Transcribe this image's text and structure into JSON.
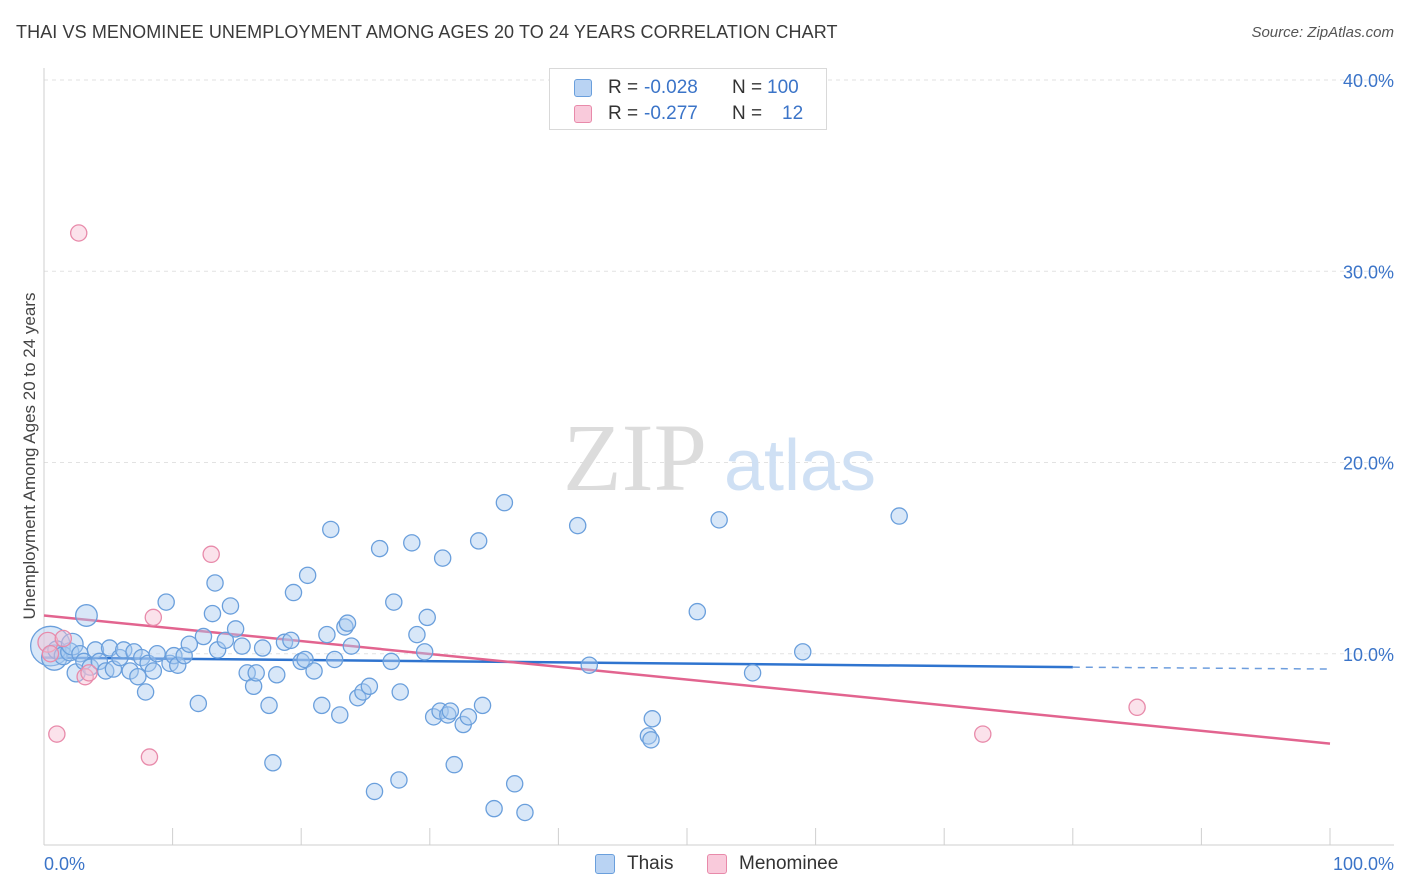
{
  "header": {
    "title": "THAI VS MENOMINEE UNEMPLOYMENT AMONG AGES 20 TO 24 YEARS CORRELATION CHART",
    "source": "Source: ZipAtlas.com"
  },
  "legend": {
    "rows": [
      {
        "r_label": "R =",
        "r_value": "-0.028",
        "n_label": "N =",
        "n_value": "100"
      },
      {
        "r_label": "R =",
        "r_value": "-0.277",
        "n_label": "N =",
        "n_value": "12"
      }
    ]
  },
  "bottom_legend": {
    "thais": "Thais",
    "menominee": "Menominee"
  },
  "watermark": {
    "zip": "ZIP",
    "atlas": "atlas"
  },
  "colors": {
    "thai_fill": "#a9c9f0",
    "thai_stroke": "#6a9fdc",
    "thai_line": "#2f74cf",
    "men_fill": "#f7bfd2",
    "men_stroke": "#e88aaa",
    "men_line": "#e2648f",
    "axis_text": "#3b74c8",
    "grid": "#e2e2e2"
  },
  "chart_data": {
    "type": "scatter",
    "title": "THAI VS MENOMINEE UNEMPLOYMENT AMONG AGES 20 TO 24 YEARS CORRELATION CHART",
    "xlabel": "",
    "ylabel": "Unemployment Among Ages 20 to 24 years",
    "xlim": [
      0,
      100
    ],
    "ylim": [
      0,
      40
    ],
    "x_tick_labels": [
      "0.0%",
      "100.0%"
    ],
    "y_ticks": [
      10,
      20,
      30,
      40
    ],
    "y_tick_labels": [
      "10.0%",
      "20.0%",
      "30.0%",
      "40.0%"
    ],
    "series": [
      {
        "name": "Thais",
        "r": -0.028,
        "n": 100,
        "trend": {
          "x0": 0,
          "y0": 9.8,
          "x1": 80,
          "y1": 9.3,
          "dash_to_x": 100,
          "dash_to_y": 9.2
        },
        "points": [
          [
            0.5,
            10.4,
            22
          ],
          [
            0.8,
            9.8,
            14
          ],
          [
            1.0,
            10.2,
            10
          ],
          [
            1.5,
            9.9,
            10
          ],
          [
            2.0,
            10.1,
            10
          ],
          [
            2.2,
            10.5,
            12
          ],
          [
            2.5,
            9.0,
            10
          ],
          [
            2.8,
            10.0,
            9
          ],
          [
            3.1,
            9.6,
            9
          ],
          [
            3.3,
            12.0,
            12
          ],
          [
            3.6,
            9.3,
            9
          ],
          [
            4.0,
            10.2,
            9
          ],
          [
            4.3,
            9.6,
            9
          ],
          [
            4.8,
            9.1,
            9
          ],
          [
            5.1,
            10.3,
            9
          ],
          [
            5.4,
            9.2,
            9
          ],
          [
            5.9,
            9.8,
            9
          ],
          [
            6.2,
            10.2,
            9
          ],
          [
            6.7,
            9.1,
            9
          ],
          [
            7.0,
            10.1,
            9
          ],
          [
            7.3,
            8.8,
            9
          ],
          [
            7.6,
            9.8,
            9
          ],
          [
            7.9,
            8.0,
            9
          ],
          [
            8.1,
            9.5,
            9
          ],
          [
            8.5,
            9.1,
            9
          ],
          [
            8.8,
            10.0,
            9
          ],
          [
            9.5,
            12.7,
            9
          ],
          [
            9.8,
            9.5,
            9
          ],
          [
            10.1,
            9.9,
            9
          ],
          [
            10.4,
            9.4,
            9
          ],
          [
            10.9,
            9.9,
            9
          ],
          [
            11.3,
            10.5,
            9
          ],
          [
            12.0,
            7.4,
            9
          ],
          [
            12.4,
            10.9,
            9
          ],
          [
            13.1,
            12.1,
            9
          ],
          [
            13.3,
            13.7,
            9
          ],
          [
            13.5,
            10.2,
            9
          ],
          [
            14.1,
            10.7,
            9
          ],
          [
            14.5,
            12.5,
            9
          ],
          [
            14.9,
            11.3,
            9
          ],
          [
            15.4,
            10.4,
            9
          ],
          [
            15.8,
            9.0,
            9
          ],
          [
            16.3,
            8.3,
            9
          ],
          [
            16.5,
            9.0,
            9
          ],
          [
            17.0,
            10.3,
            9
          ],
          [
            17.5,
            7.3,
            9
          ],
          [
            17.8,
            4.3,
            9
          ],
          [
            18.1,
            8.9,
            9
          ],
          [
            18.7,
            10.6,
            9
          ],
          [
            19.2,
            10.7,
            9
          ],
          [
            19.4,
            13.2,
            9
          ],
          [
            20.0,
            9.6,
            9
          ],
          [
            20.3,
            9.7,
            9
          ],
          [
            20.5,
            14.1,
            9
          ],
          [
            21.0,
            9.1,
            9
          ],
          [
            21.6,
            7.3,
            9
          ],
          [
            22.0,
            11.0,
            9
          ],
          [
            22.3,
            16.5,
            9
          ],
          [
            22.6,
            9.7,
            9
          ],
          [
            23.0,
            6.8,
            9
          ],
          [
            23.4,
            11.4,
            9
          ],
          [
            23.6,
            11.6,
            9
          ],
          [
            23.9,
            10.4,
            9
          ],
          [
            24.4,
            7.7,
            9
          ],
          [
            24.8,
            8.0,
            9
          ],
          [
            25.3,
            8.3,
            9
          ],
          [
            25.7,
            2.8,
            9
          ],
          [
            26.1,
            15.5,
            9
          ],
          [
            27.0,
            9.6,
            9
          ],
          [
            27.2,
            12.7,
            9
          ],
          [
            27.6,
            3.4,
            9
          ],
          [
            27.7,
            8.0,
            9
          ],
          [
            28.6,
            15.8,
            9
          ],
          [
            29.0,
            11.0,
            9
          ],
          [
            29.6,
            10.1,
            9
          ],
          [
            29.8,
            11.9,
            9
          ],
          [
            30.3,
            6.7,
            9
          ],
          [
            30.8,
            7.0,
            9
          ],
          [
            31.0,
            15.0,
            9
          ],
          [
            31.4,
            6.8,
            9
          ],
          [
            31.6,
            7.0,
            9
          ],
          [
            31.9,
            4.2,
            9
          ],
          [
            32.6,
            6.3,
            9
          ],
          [
            33.0,
            6.7,
            9
          ],
          [
            33.8,
            15.9,
            9
          ],
          [
            34.1,
            7.3,
            9
          ],
          [
            35.0,
            1.9,
            9
          ],
          [
            35.8,
            17.9,
            9
          ],
          [
            36.6,
            3.2,
            9
          ],
          [
            37.4,
            1.7,
            9
          ],
          [
            41.5,
            16.7,
            9
          ],
          [
            42.4,
            9.4,
            9
          ],
          [
            47.0,
            5.7,
            9
          ],
          [
            47.2,
            5.5,
            9
          ],
          [
            47.3,
            6.6,
            9
          ],
          [
            50.8,
            12.2,
            9
          ],
          [
            52.5,
            17.0,
            9
          ],
          [
            55.1,
            9.0,
            9
          ],
          [
            59.0,
            10.1,
            9
          ],
          [
            66.5,
            17.2,
            9
          ]
        ]
      },
      {
        "name": "Menominee",
        "r": -0.277,
        "n": 12,
        "trend": {
          "x0": 0,
          "y0": 12.0,
          "x1": 100,
          "y1": 5.3
        },
        "points": [
          [
            0.3,
            10.6,
            11
          ],
          [
            0.5,
            10.0,
            9
          ],
          [
            1.0,
            5.8,
            9
          ],
          [
            1.5,
            10.8,
            9
          ],
          [
            2.7,
            32.0,
            9
          ],
          [
            3.2,
            8.8,
            9
          ],
          [
            3.5,
            9.0,
            9
          ],
          [
            8.2,
            4.6,
            9
          ],
          [
            8.5,
            11.9,
            9
          ],
          [
            13.0,
            15.2,
            9
          ],
          [
            73.0,
            5.8,
            9
          ],
          [
            85.0,
            7.2,
            9
          ]
        ]
      }
    ]
  }
}
